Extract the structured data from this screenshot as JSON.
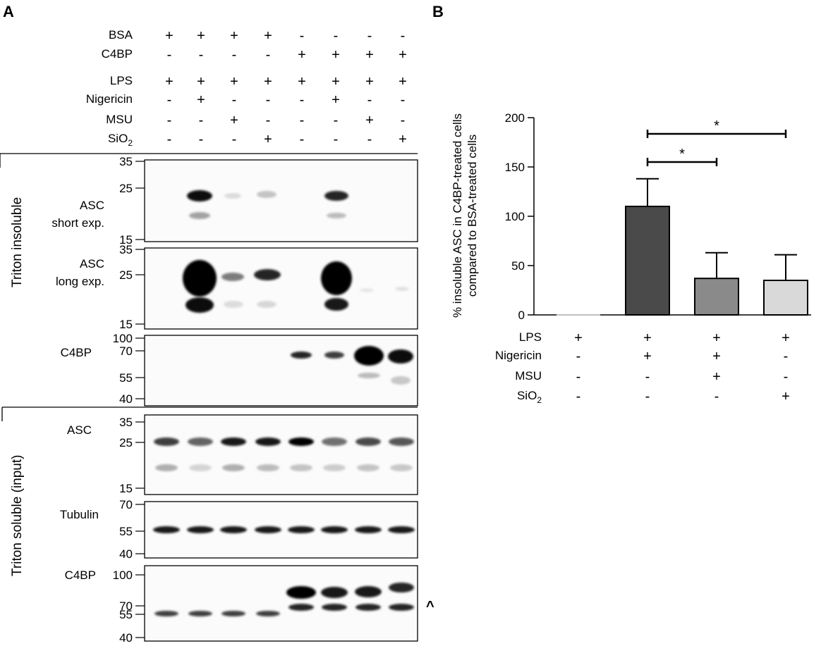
{
  "panel_a": {
    "letter": "A",
    "conditions": [
      {
        "label": "BSA",
        "signs": [
          "+",
          "+",
          "+",
          "+",
          "-",
          "-",
          "-",
          "-"
        ]
      },
      {
        "label": "C4BP",
        "signs": [
          "-",
          "-",
          "-",
          "-",
          "+",
          "+",
          "+",
          "+"
        ]
      },
      {
        "label": "LPS",
        "signs": [
          "+",
          "+",
          "+",
          "+",
          "+",
          "+",
          "+",
          "+"
        ]
      },
      {
        "label": "Nigericin",
        "signs": [
          "-",
          "+",
          "-",
          "-",
          "-",
          "+",
          "-",
          "-"
        ]
      },
      {
        "label": "MSU",
        "signs": [
          "-",
          "-",
          "+",
          "-",
          "-",
          "-",
          "+",
          "-"
        ]
      },
      {
        "label_main": "SiO",
        "label_sub": "2",
        "signs": [
          "-",
          "-",
          "-",
          "+",
          "-",
          "-",
          "-",
          "+"
        ]
      }
    ],
    "sections": {
      "insoluble": "Triton insoluble",
      "soluble": "Triton soluble (input)"
    },
    "blots": [
      {
        "labels": [
          "ASC",
          "short exp."
        ],
        "markers": [
          "35",
          "25",
          "15"
        ]
      },
      {
        "labels": [
          "ASC",
          "long exp."
        ],
        "markers": [
          "35",
          "25",
          "15"
        ]
      },
      {
        "labels": [
          "C4BP"
        ],
        "markers": [
          "100",
          "70",
          "55",
          "40"
        ]
      },
      {
        "labels": [
          "ASC"
        ],
        "markers": [
          "35",
          "25",
          "15"
        ]
      },
      {
        "labels": [
          "Tubulin"
        ],
        "markers": [
          "70",
          "55",
          "40"
        ]
      },
      {
        "labels": [
          "C4BP"
        ],
        "markers": [
          "100",
          "70",
          "55",
          "40"
        ]
      }
    ],
    "arrow_glyph": "^"
  },
  "chart_data": {
    "type": "bar",
    "panel_letter": "B",
    "ylabel_lines": [
      "% insoluble ASC in C4BP-treated cells",
      "compared to BSA-treated cells"
    ],
    "ylim": [
      0,
      200
    ],
    "yticks": [
      "0",
      "50",
      "100",
      "150",
      "200"
    ],
    "values": [
      0,
      110,
      37,
      35
    ],
    "errors": [
      0,
      28,
      26,
      26
    ],
    "bar_colors": [
      "#ffffff",
      "#4a4a4a",
      "#8a8a8a",
      "#d9d9d9"
    ],
    "condition_rows": [
      {
        "label": "LPS",
        "signs": [
          "+",
          "+",
          "+",
          "+"
        ]
      },
      {
        "label": "Nigericin",
        "signs": [
          "-",
          "+",
          "+",
          "-"
        ]
      },
      {
        "label": "MSU",
        "signs": [
          "-",
          "-",
          "+",
          "-"
        ]
      },
      {
        "label_main": "SiO",
        "label_sub": "2",
        "signs": [
          "-",
          "-",
          "-",
          "+"
        ]
      }
    ],
    "significance": [
      {
        "from": 1,
        "to": 2,
        "label": "*"
      },
      {
        "from": 1,
        "to": 3,
        "label": "*"
      }
    ]
  }
}
